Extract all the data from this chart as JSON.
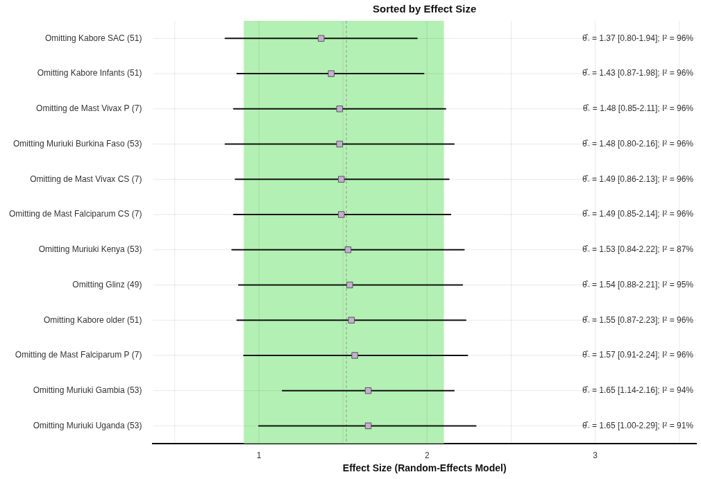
{
  "chart_data": {
    "type": "scatter",
    "orientation": "horizontal",
    "title": "Sorted by Effect Size",
    "xlabel": "Effect Size (Random-Effects Model)",
    "categories": [
      "Omitting Kabore SAC (51)",
      "Omitting Kabore Infants (51)",
      "Omitting de Mast Vivax P (7)",
      "Omitting Muriuki Burkina Faso (53)",
      "Omitting de Mast Vivax CS (7)",
      "Omitting de Mast Falciparum CS (7)",
      "Omitting Muriuki Kenya (53)",
      "Omitting Glinz (49)",
      "Omitting Kabore older (51)",
      "Omitting de Mast Falciparum P (7)",
      "Omitting Muriuki Gambia (53)",
      "Omitting Muriuki Uganda (53)"
    ],
    "series": [
      {
        "color": "#c9acd6",
        "values": [
          1.37,
          1.43,
          1.48,
          1.48,
          1.49,
          1.49,
          1.53,
          1.54,
          1.55,
          1.57,
          1.65,
          1.65
        ],
        "errors": [
          [
            0.8,
            1.94
          ],
          [
            0.87,
            1.98
          ],
          [
            0.85,
            2.11
          ],
          [
            0.8,
            2.16
          ],
          [
            0.86,
            2.13
          ],
          [
            0.85,
            2.14
          ],
          [
            0.84,
            2.22
          ],
          [
            0.88,
            2.21
          ],
          [
            0.87,
            2.23
          ],
          [
            0.91,
            2.24
          ],
          [
            1.14,
            2.16
          ],
          [
            1.0,
            2.29
          ]
        ]
      }
    ],
    "annotations": [
      "θ̂₋ = 1.37 [0.80-1.94]; I² = 96%",
      "θ̂₋ = 1.43 [0.87-1.98]; I² = 96%",
      "θ̂₋ = 1.48 [0.85-2.11]; I² = 96%",
      "θ̂₋ = 1.48 [0.80-2.16]; I² = 96%",
      "θ̂₋ = 1.49 [0.86-2.13]; I² = 96%",
      "θ̂₋ = 1.49 [0.85-2.14]; I² = 96%",
      "θ̂₋ = 1.53 [0.84-2.22]; I² = 87%",
      "θ̂₋ = 1.54 [0.88-2.21]; I² = 95%",
      "θ̂₋ = 1.55 [0.87-2.23]; I² = 96%",
      "θ̂₋ = 1.57 [0.91-2.24]; I² = 96%",
      "θ̂₋ = 1.65 [1.14-2.16]; I² = 94%",
      "θ̂₋ = 1.65 [1.00-2.29]; I² = 91%"
    ],
    "xlim": [
      0.37,
      3.6
    ],
    "xticks": [
      {
        "value": 0.5,
        "label": null
      },
      1,
      {
        "value": 1.5,
        "label": null
      },
      2,
      {
        "value": 2.5,
        "label": null
      },
      3,
      {
        "value": 3.5,
        "label": null
      }
    ],
    "bands": [
      {
        "axis": "x",
        "from": 0.91,
        "to": 2.1,
        "color": "#b3f0b3"
      }
    ],
    "ref_lines": [
      {
        "axis": "x",
        "value": 1.52,
        "color": "#999999",
        "line_style": "dashed"
      }
    ],
    "grid": true,
    "legend": false,
    "marker": "square"
  }
}
